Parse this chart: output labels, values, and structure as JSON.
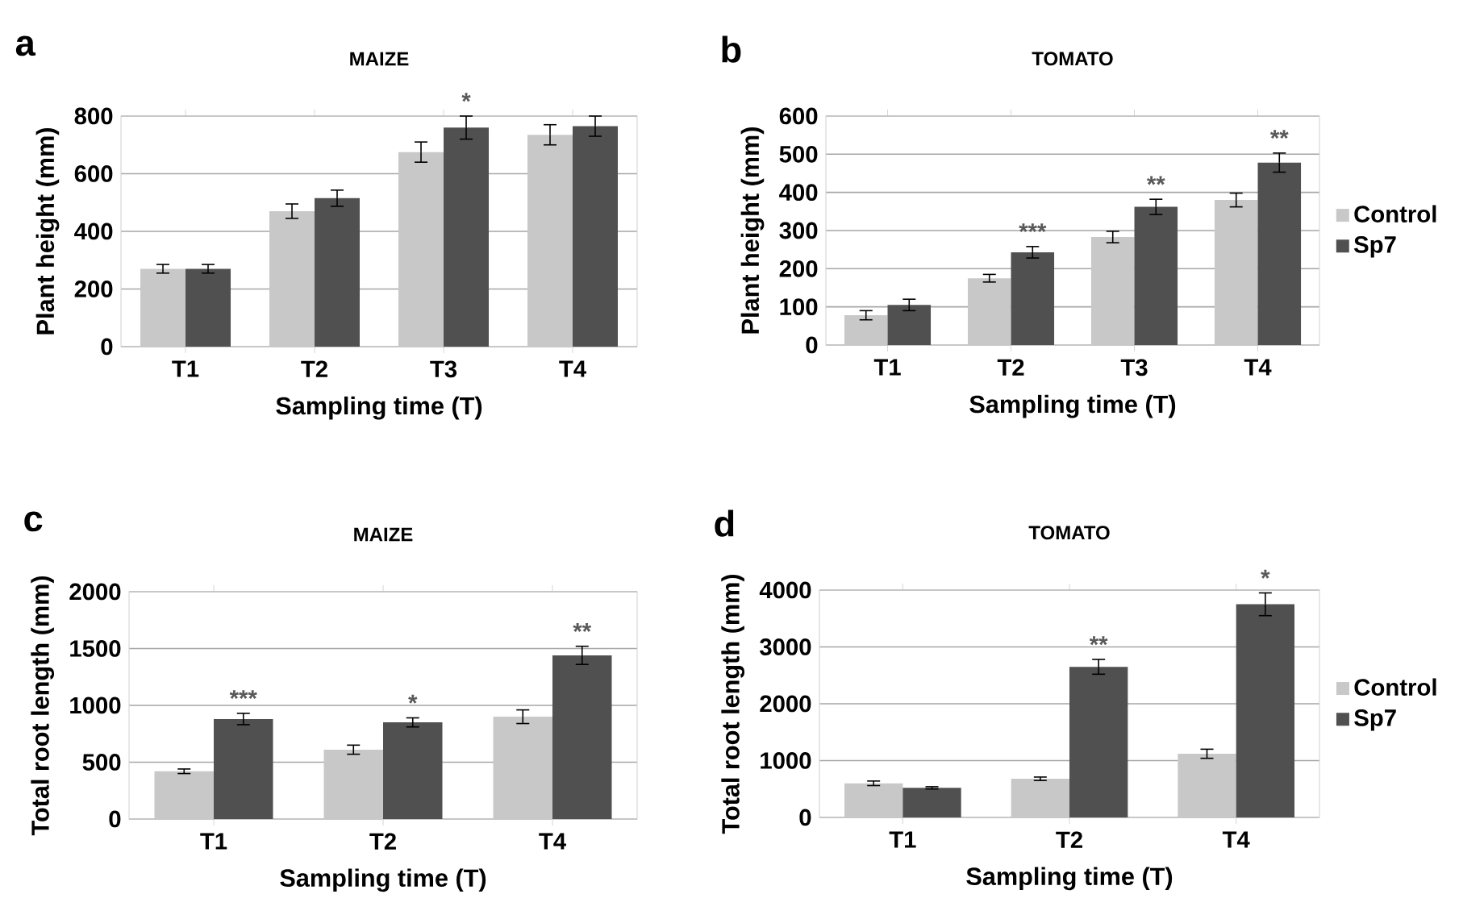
{
  "chart_data": [
    {
      "type": "bar",
      "title": "MAIZE",
      "xlabel": "Sampling time (T)",
      "ylabel": "Plant height (mm)",
      "categories": [
        "T1",
        "T2",
        "T3",
        "T4"
      ],
      "series": [
        {
          "color": "#c8c8c8",
          "values": [
            270,
            470,
            675,
            735
          ],
          "errors": [
            15,
            25,
            35,
            35
          ]
        },
        {
          "color": "#505050",
          "values": [
            270,
            515,
            760,
            765
          ],
          "errors": [
            15,
            28,
            40,
            35
          ]
        }
      ],
      "ylim": [
        0,
        800
      ],
      "yticks": [
        0,
        200,
        400,
        600,
        800
      ],
      "grid": "y",
      "legend": false,
      "annotations": [
        "a",
        {
          "text": "*",
          "x": "T3",
          "y": 760
        }
      ]
    },
    {
      "type": "bar",
      "title": "TOMATO",
      "xlabel": "Sampling time (T)",
      "ylabel": "Plant height (mm)",
      "categories": [
        "T1",
        "T2",
        "T3",
        "T4"
      ],
      "series": [
        {
          "name": "Control",
          "color": "#c8c8c8",
          "values": [
            78,
            175,
            283,
            380
          ],
          "errors": [
            12,
            10,
            15,
            18
          ]
        },
        {
          "name": "Sp7",
          "color": "#505050",
          "values": [
            105,
            243,
            362,
            478
          ],
          "errors": [
            15,
            15,
            20,
            25
          ]
        }
      ],
      "ylim": [
        0,
        600
      ],
      "yticks": [
        0,
        100,
        200,
        300,
        400,
        500,
        600
      ],
      "grid": "y",
      "legend": "right",
      "annotations": [
        "b",
        {
          "text": "***",
          "x": "T2",
          "y": 243
        },
        {
          "text": "**",
          "x": "T3",
          "y": 362
        },
        {
          "text": "**",
          "x": "T4",
          "y": 478
        }
      ]
    },
    {
      "type": "bar",
      "title": "MAIZE",
      "xlabel": "Sampling time (T)",
      "ylabel": "Total root length (mm)",
      "categories": [
        "T1",
        "T2",
        "T4"
      ],
      "series": [
        {
          "color": "#c8c8c8",
          "values": [
            420,
            610,
            900
          ],
          "errors": [
            20,
            40,
            60
          ]
        },
        {
          "color": "#505050",
          "values": [
            880,
            850,
            1440
          ],
          "errors": [
            50,
            40,
            80
          ]
        }
      ],
      "ylim": [
        0,
        2000
      ],
      "yticks": [
        0,
        500,
        1000,
        1500,
        2000
      ],
      "grid": "y",
      "legend": false,
      "annotations": [
        "c",
        {
          "text": "***",
          "x": "T1",
          "y": 880
        },
        {
          "text": "*",
          "x": "T2",
          "y": 850
        },
        {
          "text": "**",
          "x": "T4",
          "y": 1440
        }
      ]
    },
    {
      "type": "bar",
      "title": "TOMATO",
      "xlabel": "Sampling time (T)",
      "ylabel": "Total root length (mm)",
      "categories": [
        "T1",
        "T2",
        "T4"
      ],
      "series": [
        {
          "name": "Control",
          "color": "#c8c8c8",
          "values": [
            600,
            680,
            1120
          ],
          "errors": [
            40,
            30,
            80
          ]
        },
        {
          "name": "Sp7",
          "color": "#505050",
          "values": [
            520,
            2650,
            3750
          ],
          "errors": [
            20,
            130,
            200
          ]
        }
      ],
      "ylim": [
        0,
        4000
      ],
      "yticks": [
        0,
        1000,
        2000,
        3000,
        4000
      ],
      "grid": "y",
      "legend": "right",
      "annotations": [
        "d",
        {
          "text": "**",
          "x": "T2",
          "y": 2650
        },
        {
          "text": "*",
          "x": "T4",
          "y": 3750
        }
      ]
    }
  ]
}
